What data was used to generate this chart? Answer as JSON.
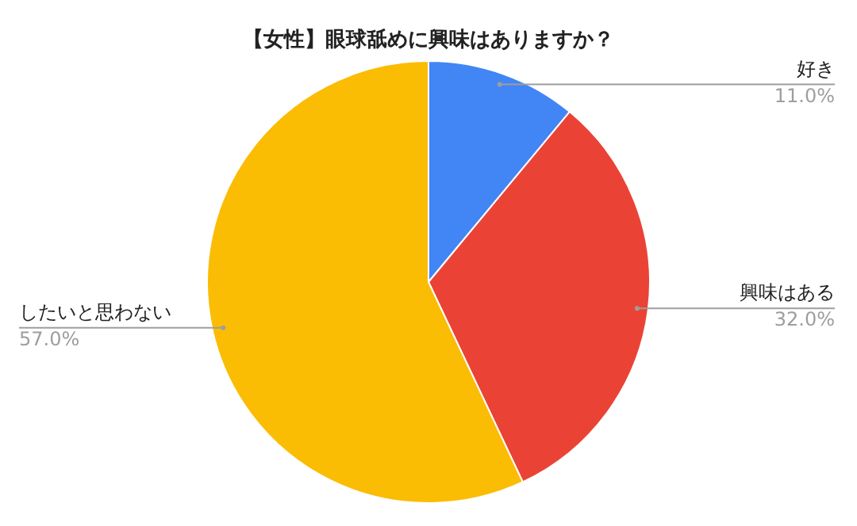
{
  "chart_data": {
    "type": "pie",
    "title": "【女性】眼球舐めに興味はありますか？",
    "categories": [
      "好き",
      "興味はある",
      "したいと思わない"
    ],
    "values": [
      11,
      32,
      57
    ],
    "colors": [
      "#4285f4",
      "#ea4335",
      "#fbbc04"
    ],
    "value_labels": [
      "11.0%",
      "32.0%",
      "57.0%"
    ],
    "legend": false
  }
}
